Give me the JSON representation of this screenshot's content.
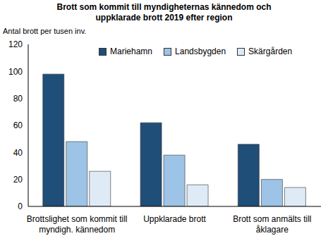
{
  "chart_data": {
    "type": "bar",
    "title": "Brott som kommit till myndigheternas kännedom och uppklarade brott 2019 efter region",
    "y_label": "Antal brott per tusen inv.",
    "categories": [
      "Brottslighet som kommit till myndigh. kännedom",
      "Uppklarade brott",
      "Brott som anmälts till åklagare"
    ],
    "series": [
      {
        "name": "Mariehamn",
        "color": "#1f4e79",
        "values": [
          98,
          62,
          46
        ]
      },
      {
        "name": "Landsbygden",
        "color": "#9dc3e6",
        "values": [
          48,
          38,
          20
        ]
      },
      {
        "name": "Skärgården",
        "color": "#deebf7",
        "values": [
          26,
          16,
          14
        ]
      }
    ],
    "ylim": [
      0,
      120
    ],
    "yticks": [
      0,
      20,
      40,
      60,
      80,
      100,
      120
    ],
    "grid": false,
    "legend": "top"
  }
}
